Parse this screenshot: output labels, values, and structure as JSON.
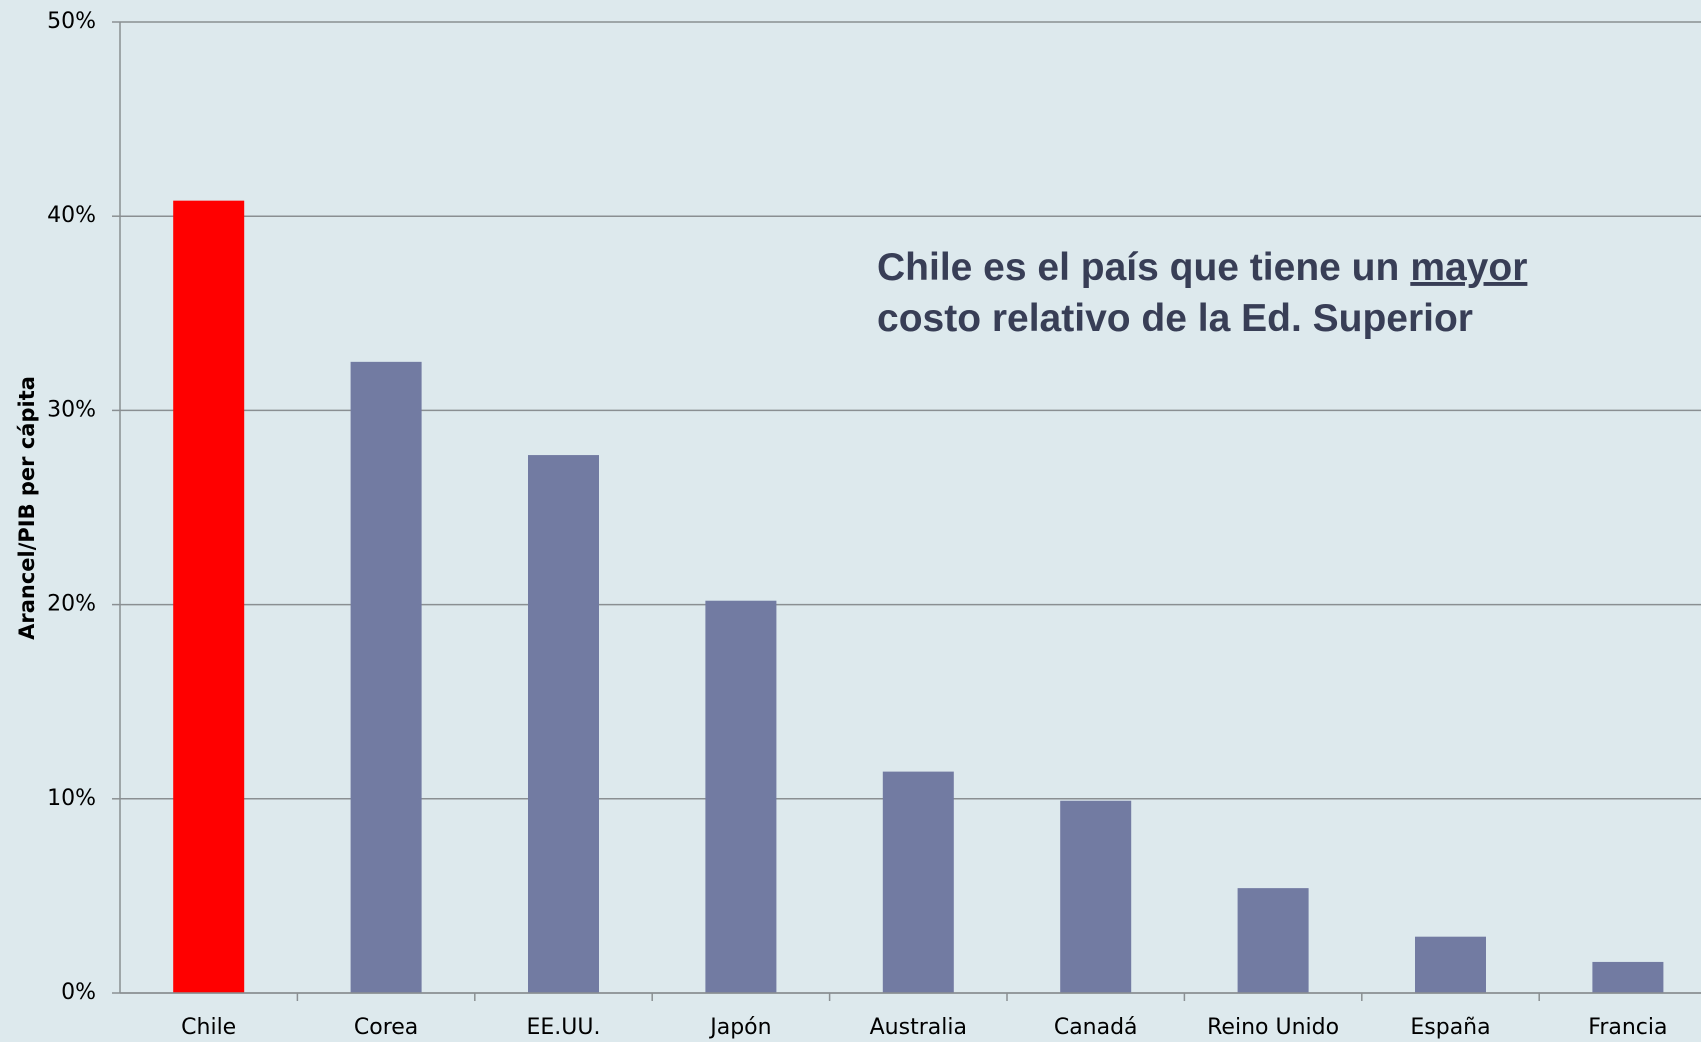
{
  "chart_data": {
    "type": "bar",
    "y_label": "Arancel/PIB per cápita",
    "annotation": {
      "line1": "Chile es el país que tiene un",
      "emphasis": "mayor",
      "line2": "costo relativo de la Ed. Superior"
    },
    "categories": [
      "Chile",
      "Corea",
      "EE.UU.",
      "Japón",
      "Australia",
      "Canadá",
      "Reino Unido",
      "España",
      "Francia"
    ],
    "values": [
      40.8,
      32.5,
      27.7,
      20.2,
      11.4,
      9.9,
      5.4,
      2.9,
      1.6
    ],
    "colors": [
      "#ff0000",
      "#727ba2",
      "#727ba2",
      "#727ba2",
      "#727ba2",
      "#727ba2",
      "#727ba2",
      "#727ba2",
      "#727ba2"
    ],
    "ylim": [
      0,
      50
    ],
    "yticks": [
      {
        "value": 0,
        "label": "0%"
      },
      {
        "value": 10,
        "label": "10%"
      },
      {
        "value": 20,
        "label": "20%"
      },
      {
        "value": 30,
        "label": "30%"
      },
      {
        "value": 40,
        "label": "40%"
      },
      {
        "value": 50,
        "label": "50%"
      }
    ],
    "grid": true
  }
}
